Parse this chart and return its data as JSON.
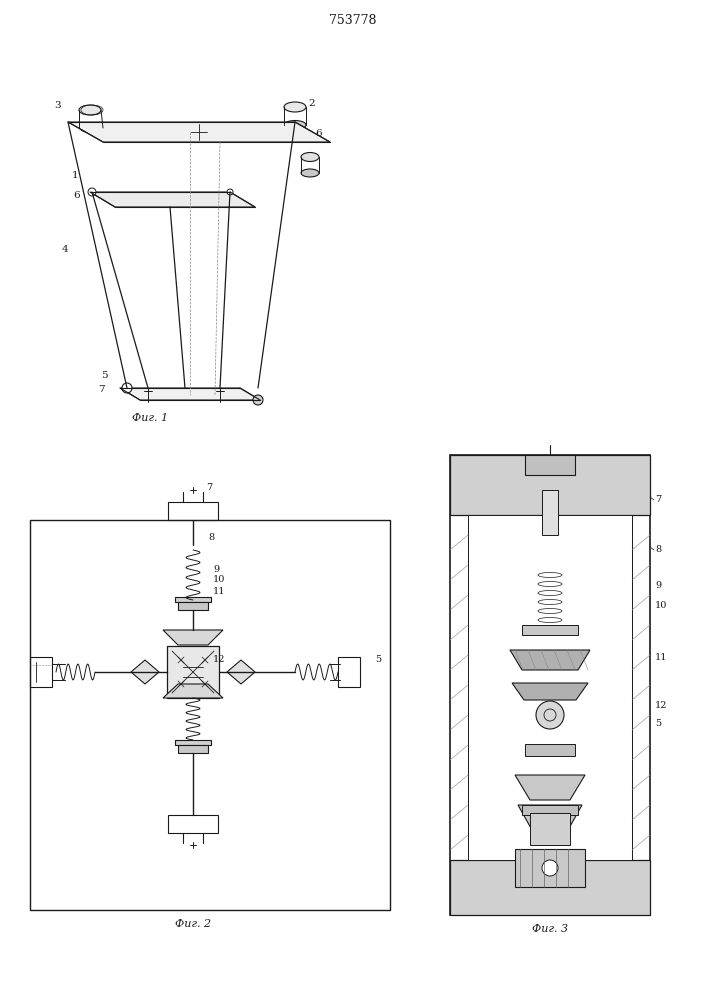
{
  "title": "753778",
  "bg_color": "#ffffff",
  "line_color": "#1a1a1a",
  "fig1_caption": "Фиг. 1",
  "fig2_caption": "Фиг. 2",
  "fig3_caption": "Фиг. 3",
  "label_color": "#1a1a1a",
  "hatch_color": "#555555"
}
